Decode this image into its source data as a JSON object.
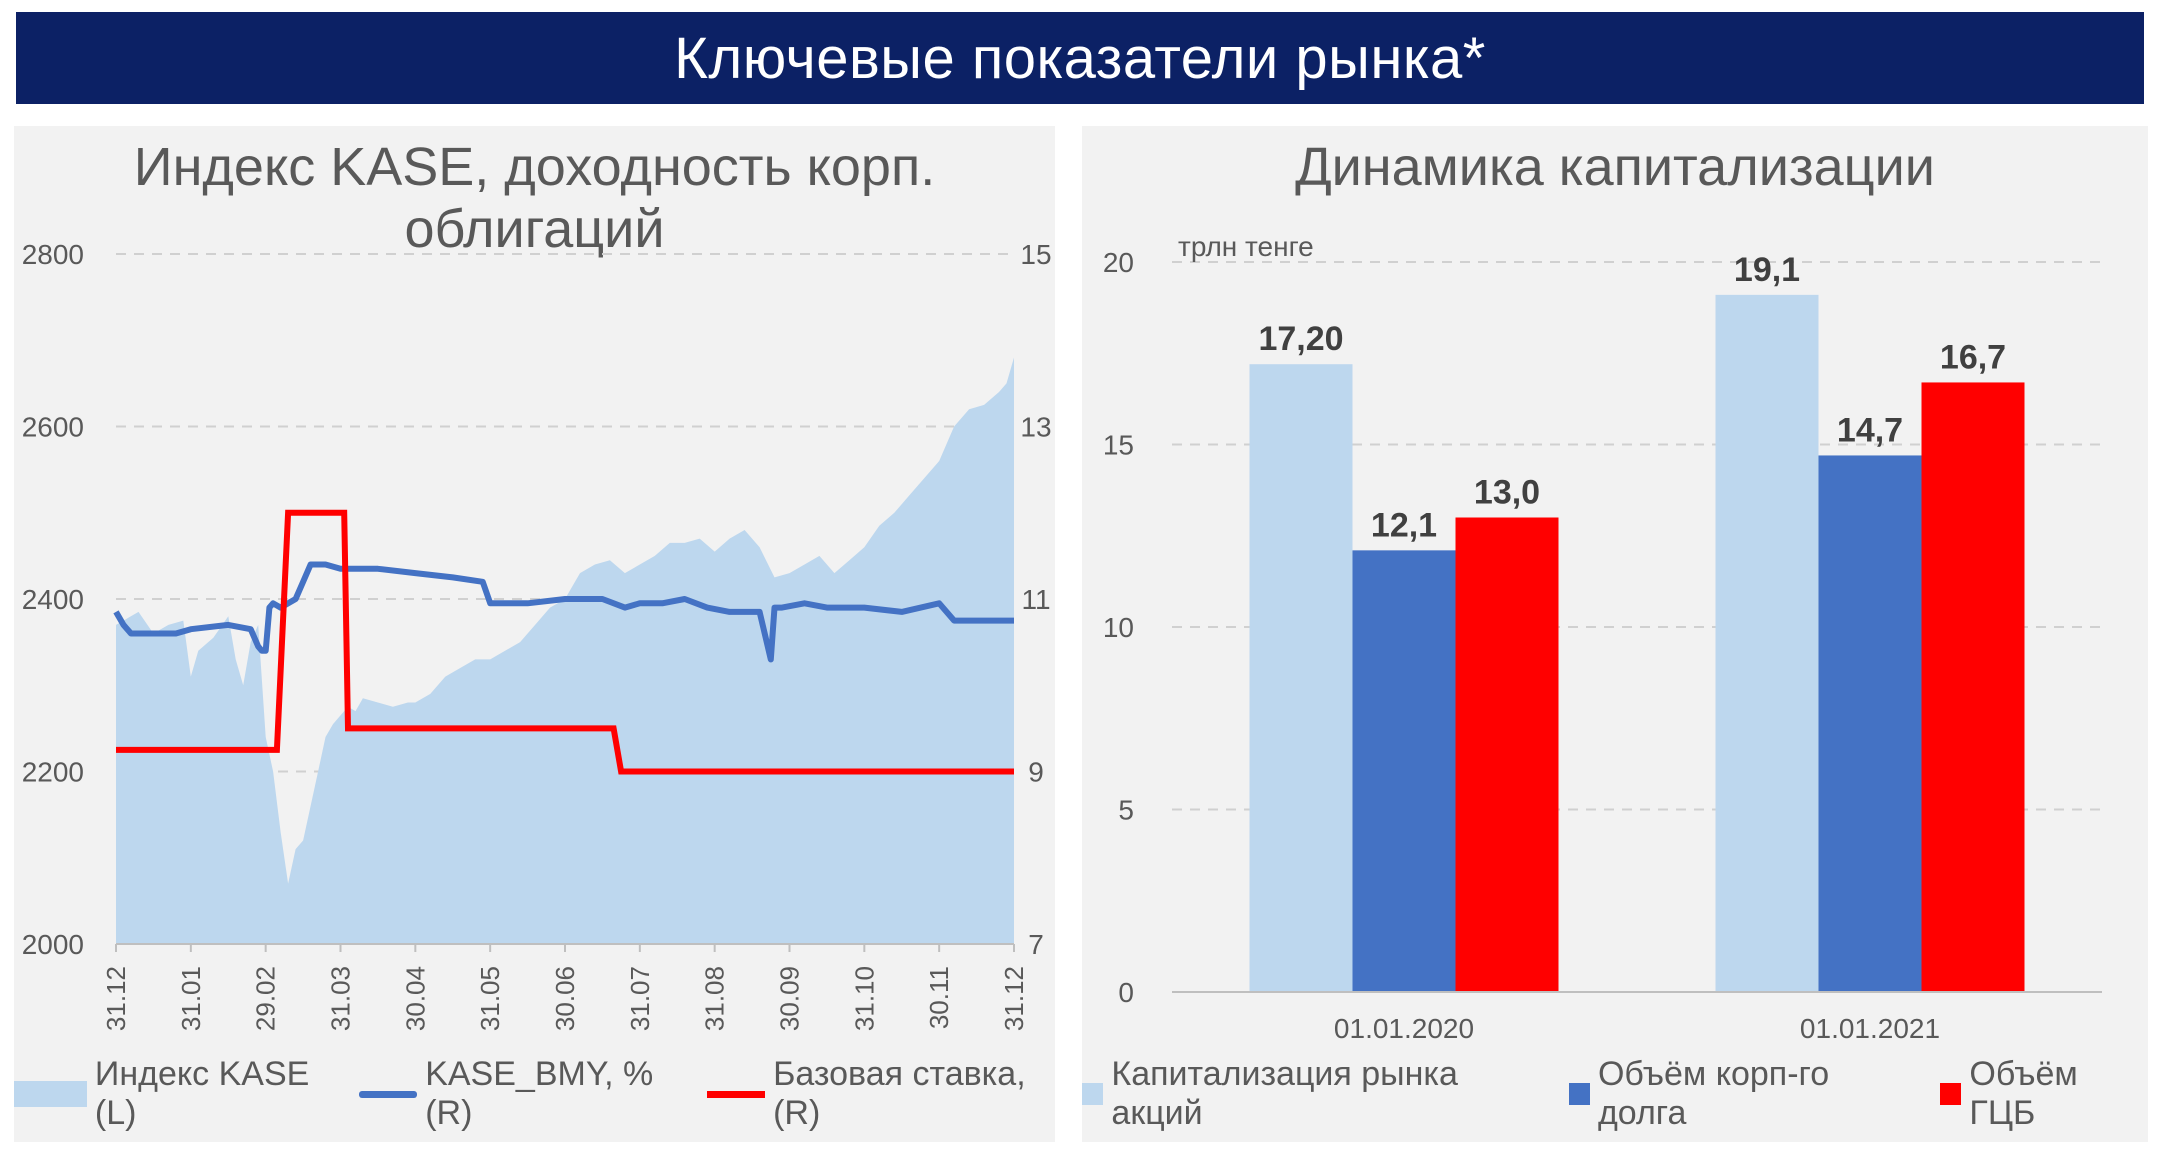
{
  "header": {
    "title": "Ключевые показатели рынка*"
  },
  "colors": {
    "banner": "#0c2165",
    "kase_area": "#bdd7ee",
    "bmy_line": "#4472c4",
    "base_rate_line": "#ff0000",
    "equity_bar": "#bdd7ee",
    "corp_debt_bar": "#4472c4",
    "gov_bonds_bar": "#ff0000"
  },
  "chart_data": [
    {
      "type": "area",
      "title": "Индекс KASE, доходность корп. облигаций",
      "x_tick_labels": [
        "31.12",
        "31.01",
        "29.02",
        "31.03",
        "30.04",
        "31.05",
        "30.06",
        "31.07",
        "31.08",
        "30.09",
        "31.10",
        "30.11",
        "31.12"
      ],
      "y_left": {
        "ylim": [
          2000,
          2800
        ],
        "ticks": [
          "2800",
          "2600",
          "2400",
          "2200",
          "2000"
        ]
      },
      "y_right": {
        "ylim": [
          7,
          15
        ],
        "ticks": [
          "15",
          "13",
          "11",
          "9",
          "7"
        ]
      },
      "grid": "horizontal dashed",
      "legend_position": "bottom",
      "series": [
        {
          "name": "Индекс KASE (L)",
          "type": "area",
          "axis": "left",
          "x": [
            0,
            0.3,
            0.5,
            0.7,
            0.9,
            1.0,
            1.1,
            1.3,
            1.5,
            1.6,
            1.7,
            1.8,
            1.9,
            2.0,
            2.1,
            2.2,
            2.3,
            2.4,
            2.5,
            2.6,
            2.7,
            2.8,
            2.9,
            3.0,
            3.1,
            3.2,
            3.3,
            3.5,
            3.7,
            3.9,
            4.0,
            4.2,
            4.4,
            4.6,
            4.8,
            5.0,
            5.2,
            5.4,
            5.6,
            5.8,
            6.0,
            6.2,
            6.4,
            6.6,
            6.8,
            7.0,
            7.2,
            7.4,
            7.6,
            7.8,
            8.0,
            8.2,
            8.4,
            8.6,
            8.8,
            9.0,
            9.2,
            9.4,
            9.6,
            9.8,
            10.0,
            10.2,
            10.4,
            10.6,
            10.8,
            11.0,
            11.2,
            11.4,
            11.6,
            11.8,
            11.9,
            12.0
          ],
          "values": [
            2370,
            2385,
            2360,
            2370,
            2375,
            2310,
            2340,
            2355,
            2380,
            2330,
            2300,
            2350,
            2370,
            2240,
            2200,
            2130,
            2070,
            2110,
            2120,
            2160,
            2200,
            2240,
            2255,
            2265,
            2275,
            2270,
            2285,
            2280,
            2275,
            2280,
            2280,
            2290,
            2310,
            2320,
            2330,
            2330,
            2340,
            2350,
            2370,
            2390,
            2400,
            2430,
            2440,
            2445,
            2430,
            2440,
            2450,
            2465,
            2465,
            2470,
            2455,
            2470,
            2480,
            2460,
            2425,
            2430,
            2440,
            2450,
            2430,
            2445,
            2460,
            2485,
            2500,
            2520,
            2540,
            2560,
            2600,
            2620,
            2625,
            2640,
            2650,
            2680
          ]
        },
        {
          "name": "KASE_BMY, % (R)",
          "type": "line",
          "axis": "right",
          "x": [
            0,
            0.1,
            0.2,
            0.8,
            1.0,
            1.5,
            1.8,
            1.9,
            1.95,
            2.0,
            2.05,
            2.1,
            2.2,
            2.4,
            2.5,
            2.6,
            2.8,
            3.0,
            3.5,
            4.0,
            4.5,
            4.9,
            5.0,
            5.5,
            6.0,
            6.5,
            6.8,
            7.0,
            7.3,
            7.6,
            7.9,
            8.2,
            8.5,
            8.6,
            8.75,
            8.8,
            8.9,
            9.2,
            9.5,
            10.0,
            10.5,
            11.0,
            11.2,
            11.5,
            11.8,
            12.0
          ],
          "values": [
            10.85,
            10.7,
            10.6,
            10.6,
            10.65,
            10.7,
            10.65,
            10.45,
            10.4,
            10.4,
            10.9,
            10.95,
            10.9,
            11.0,
            11.2,
            11.4,
            11.4,
            11.35,
            11.35,
            11.3,
            11.25,
            11.2,
            10.95,
            10.95,
            11.0,
            11.0,
            10.9,
            10.95,
            10.95,
            11.0,
            10.9,
            10.85,
            10.85,
            10.85,
            10.3,
            10.9,
            10.9,
            10.95,
            10.9,
            10.9,
            10.85,
            10.95,
            10.75,
            10.75,
            10.75,
            10.75
          ]
        },
        {
          "name": "Базовая ставка, (R)",
          "type": "line",
          "axis": "right",
          "x": [
            0,
            2.15,
            2.3,
            3.05,
            3.1,
            6.65,
            6.75,
            12.0
          ],
          "values": [
            9.25,
            9.25,
            12.0,
            12.0,
            9.5,
            9.5,
            9.0,
            9.0
          ]
        }
      ]
    },
    {
      "type": "bar",
      "title": "Динамика капитализации",
      "unit_label": "трлн тенге",
      "categories": [
        "01.01.2020",
        "01.01.2021"
      ],
      "ylim": [
        0,
        20
      ],
      "y_ticks": [
        "0",
        "5",
        "10",
        "15",
        "20"
      ],
      "grid": "horizontal dashed",
      "legend_position": "bottom",
      "series": [
        {
          "name": "Капитализация рынка акций",
          "values": [
            17.2,
            19.1
          ],
          "labels": [
            "17,20",
            "19,1"
          ]
        },
        {
          "name": "Объём корп-го долга",
          "values": [
            12.1,
            14.7
          ],
          "labels": [
            "12,1",
            "14,7"
          ]
        },
        {
          "name": "Объём ГЦБ",
          "values": [
            13.0,
            16.7
          ],
          "labels": [
            "13,0",
            "16,7"
          ]
        }
      ]
    }
  ]
}
